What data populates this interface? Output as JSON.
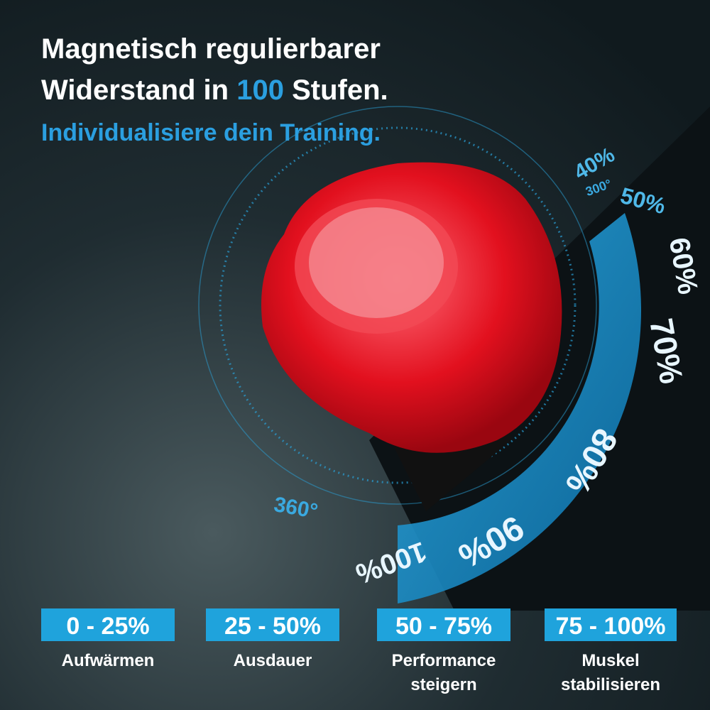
{
  "header": {
    "line1": "Magnetisch regulierbarer",
    "line2_start": "Widerstand in ",
    "line2_highlight": "100",
    "line2_end": " Stufen.",
    "subtitle": "Individualisiere dein Training."
  },
  "dial": {
    "labels": [
      "40%",
      "50%",
      "60%",
      "70%",
      "80%",
      "90%",
      "100%"
    ],
    "degrees": [
      "300°",
      "360°"
    ]
  },
  "levels": [
    {
      "range": "0 - 25%",
      "label": [
        "Aufwärmen"
      ]
    },
    {
      "range": "25 - 50%",
      "label": [
        "Ausdauer"
      ]
    },
    {
      "range": "50 - 75%",
      "label": [
        "Performance",
        "steigern"
      ]
    },
    {
      "range": "75 - 100%",
      "label": [
        "Muskel",
        "stabilisieren"
      ]
    }
  ]
}
